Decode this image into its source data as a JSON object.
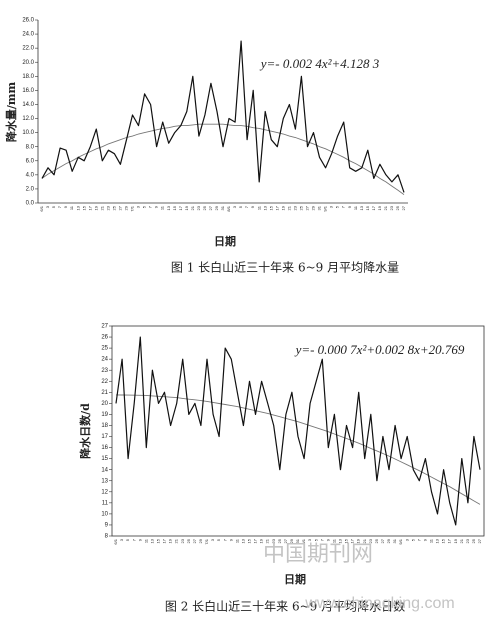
{
  "chart_data": [
    {
      "type": "line",
      "y_label": "降水量/mm",
      "x_label": "日期",
      "equation": "y=- 0.002 4x²+4.128 3",
      "caption": "图 1 长白山近三十年来 6~9 月平均降水量",
      "categories": [
        "6/1",
        "3",
        "5",
        "7",
        "9",
        "11",
        "13",
        "15",
        "17",
        "19",
        "21",
        "23",
        "25",
        "27",
        "29",
        "7/1",
        "3",
        "5",
        "7",
        "9",
        "11",
        "13",
        "15",
        "17",
        "19",
        "21",
        "23",
        "25",
        "27",
        "29",
        "31",
        "8/1",
        "3",
        "5",
        "7",
        "9",
        "11",
        "13",
        "15",
        "17",
        "19",
        "21",
        "23",
        "25",
        "27",
        "29",
        "31",
        "9/1",
        "3",
        "5",
        "7",
        "9",
        "11",
        "13",
        "15",
        "17",
        "19",
        "21",
        "23",
        "25",
        "27"
      ],
      "series": [
        {
          "color": "#111111",
          "values": [
            3.5,
            5.0,
            4.0,
            7.8,
            7.5,
            4.5,
            6.5,
            6.0,
            8.0,
            10.5,
            6.0,
            7.5,
            7.0,
            5.5,
            9.0,
            12.5,
            11.0,
            15.5,
            14.0,
            8.0,
            11.5,
            8.5,
            10.0,
            11.0,
            13.0,
            18.0,
            9.5,
            12.5,
            17.0,
            13.0,
            8.0,
            12.0,
            11.5,
            23.0,
            9.0,
            16.0,
            3.0,
            13.0,
            9.0,
            8.0,
            12.0,
            14.0,
            10.5,
            18.0,
            8.0,
            10.0,
            6.5,
            5.0,
            7.0,
            9.5,
            11.5,
            5.0,
            4.5,
            5.0,
            7.5,
            3.5,
            5.5,
            4.0,
            3.0,
            4.0,
            1.5
          ]
        }
      ],
      "trend": {
        "color": "#777777",
        "values": [
          3.5,
          4.1,
          4.6,
          5.1,
          5.6,
          6.0,
          6.5,
          6.9,
          7.3,
          7.7,
          8.0,
          8.4,
          8.7,
          9.0,
          9.3,
          9.5,
          9.8,
          10.0,
          10.2,
          10.4,
          10.6,
          10.7,
          10.9,
          11.0,
          11.0,
          11.1,
          11.2,
          11.2,
          11.2,
          11.2,
          11.2,
          11.1,
          11.0,
          11.0,
          10.9,
          10.7,
          10.6,
          10.4,
          10.2,
          10.0,
          9.8,
          9.5,
          9.3,
          9.0,
          8.7,
          8.4,
          8.0,
          7.7,
          7.3,
          6.9,
          6.5,
          6.0,
          5.6,
          5.1,
          4.6,
          4.1,
          3.5,
          3.0,
          2.4,
          1.8,
          1.2
        ]
      },
      "ylim": [
        0,
        26
      ],
      "yticks": [
        {
          "value": 0,
          "label": "0.0"
        },
        {
          "value": 2,
          "label": "2.0"
        },
        {
          "value": 4,
          "label": "4.0"
        },
        {
          "value": 6,
          "label": "6.0"
        },
        {
          "value": 8,
          "label": "8.0"
        },
        {
          "value": 10,
          "label": "10.0"
        },
        {
          "value": 12,
          "label": "12.0"
        },
        {
          "value": 14,
          "label": "14.0"
        },
        {
          "value": 16,
          "label": "16.0"
        },
        {
          "value": 18,
          "label": "18.0"
        },
        {
          "value": 20,
          "label": "20.0"
        },
        {
          "value": 22,
          "label": "22.0"
        },
        {
          "value": 24,
          "label": "24.0"
        },
        {
          "value": 26,
          "label": "26.0"
        }
      ],
      "frame": false
    },
    {
      "type": "line",
      "y_label": "降水日数/d",
      "x_label": "日期",
      "equation": "y=- 0.000 7x²+0.002 8x+20.769",
      "caption": "图 2 长白山近三十年来 6~9 月平均降水日数",
      "categories": [
        "6/1",
        "3",
        "5",
        "7",
        "9",
        "11",
        "13",
        "15",
        "17",
        "19",
        "21",
        "23",
        "25",
        "27",
        "29",
        "7/1",
        "3",
        "5",
        "7",
        "9",
        "11",
        "13",
        "15",
        "17",
        "19",
        "21",
        "23",
        "25",
        "27",
        "29",
        "31",
        "8/1",
        "3",
        "5",
        "7",
        "9",
        "11",
        "13",
        "15",
        "17",
        "19",
        "21",
        "23",
        "25",
        "27",
        "29",
        "31",
        "9/1",
        "3",
        "5",
        "7",
        "9",
        "11",
        "13",
        "15",
        "17",
        "19",
        "21",
        "23",
        "25",
        "27"
      ],
      "series": [
        {
          "color": "#111111",
          "values": [
            20,
            24,
            15,
            20,
            26,
            16,
            23,
            20,
            21,
            18,
            20,
            24,
            19,
            20,
            18,
            24,
            19,
            17,
            25,
            24,
            21,
            18,
            22,
            19,
            22,
            20,
            18,
            14,
            19,
            21,
            17,
            15,
            20,
            22,
            24,
            16,
            19,
            14,
            18,
            16,
            21,
            15,
            19,
            13,
            17,
            14,
            18,
            15,
            17,
            14,
            13,
            15,
            12,
            10,
            14,
            11,
            9,
            15,
            11,
            17,
            14
          ]
        }
      ],
      "trend": {
        "color": "#777777",
        "values": [
          20.77,
          20.76,
          20.75,
          20.74,
          20.73,
          20.72,
          20.68,
          20.64,
          20.6,
          20.56,
          20.52,
          20.45,
          20.38,
          20.32,
          20.25,
          20.18,
          20.09,
          19.99,
          19.9,
          19.8,
          19.71,
          19.59,
          19.46,
          19.34,
          19.21,
          19.09,
          18.94,
          18.79,
          18.64,
          18.49,
          18.34,
          18.16,
          17.98,
          17.8,
          17.62,
          17.44,
          17.23,
          17.02,
          16.82,
          16.61,
          16.4,
          16.17,
          15.93,
          15.7,
          15.46,
          15.23,
          14.97,
          14.7,
          14.44,
          14.17,
          13.91,
          13.62,
          13.33,
          13.04,
          12.75,
          12.46,
          12.14,
          11.82,
          11.5,
          11.18,
          10.86
        ]
      },
      "ylim": [
        8,
        27
      ],
      "yticks": [
        8,
        9,
        10,
        11,
        12,
        13,
        14,
        15,
        16,
        17,
        18,
        19,
        20,
        21,
        22,
        23,
        24,
        25,
        26,
        27
      ],
      "frame": true
    }
  ],
  "watermark": [
    "中国期刊网",
    "www.chinaqking.com"
  ]
}
